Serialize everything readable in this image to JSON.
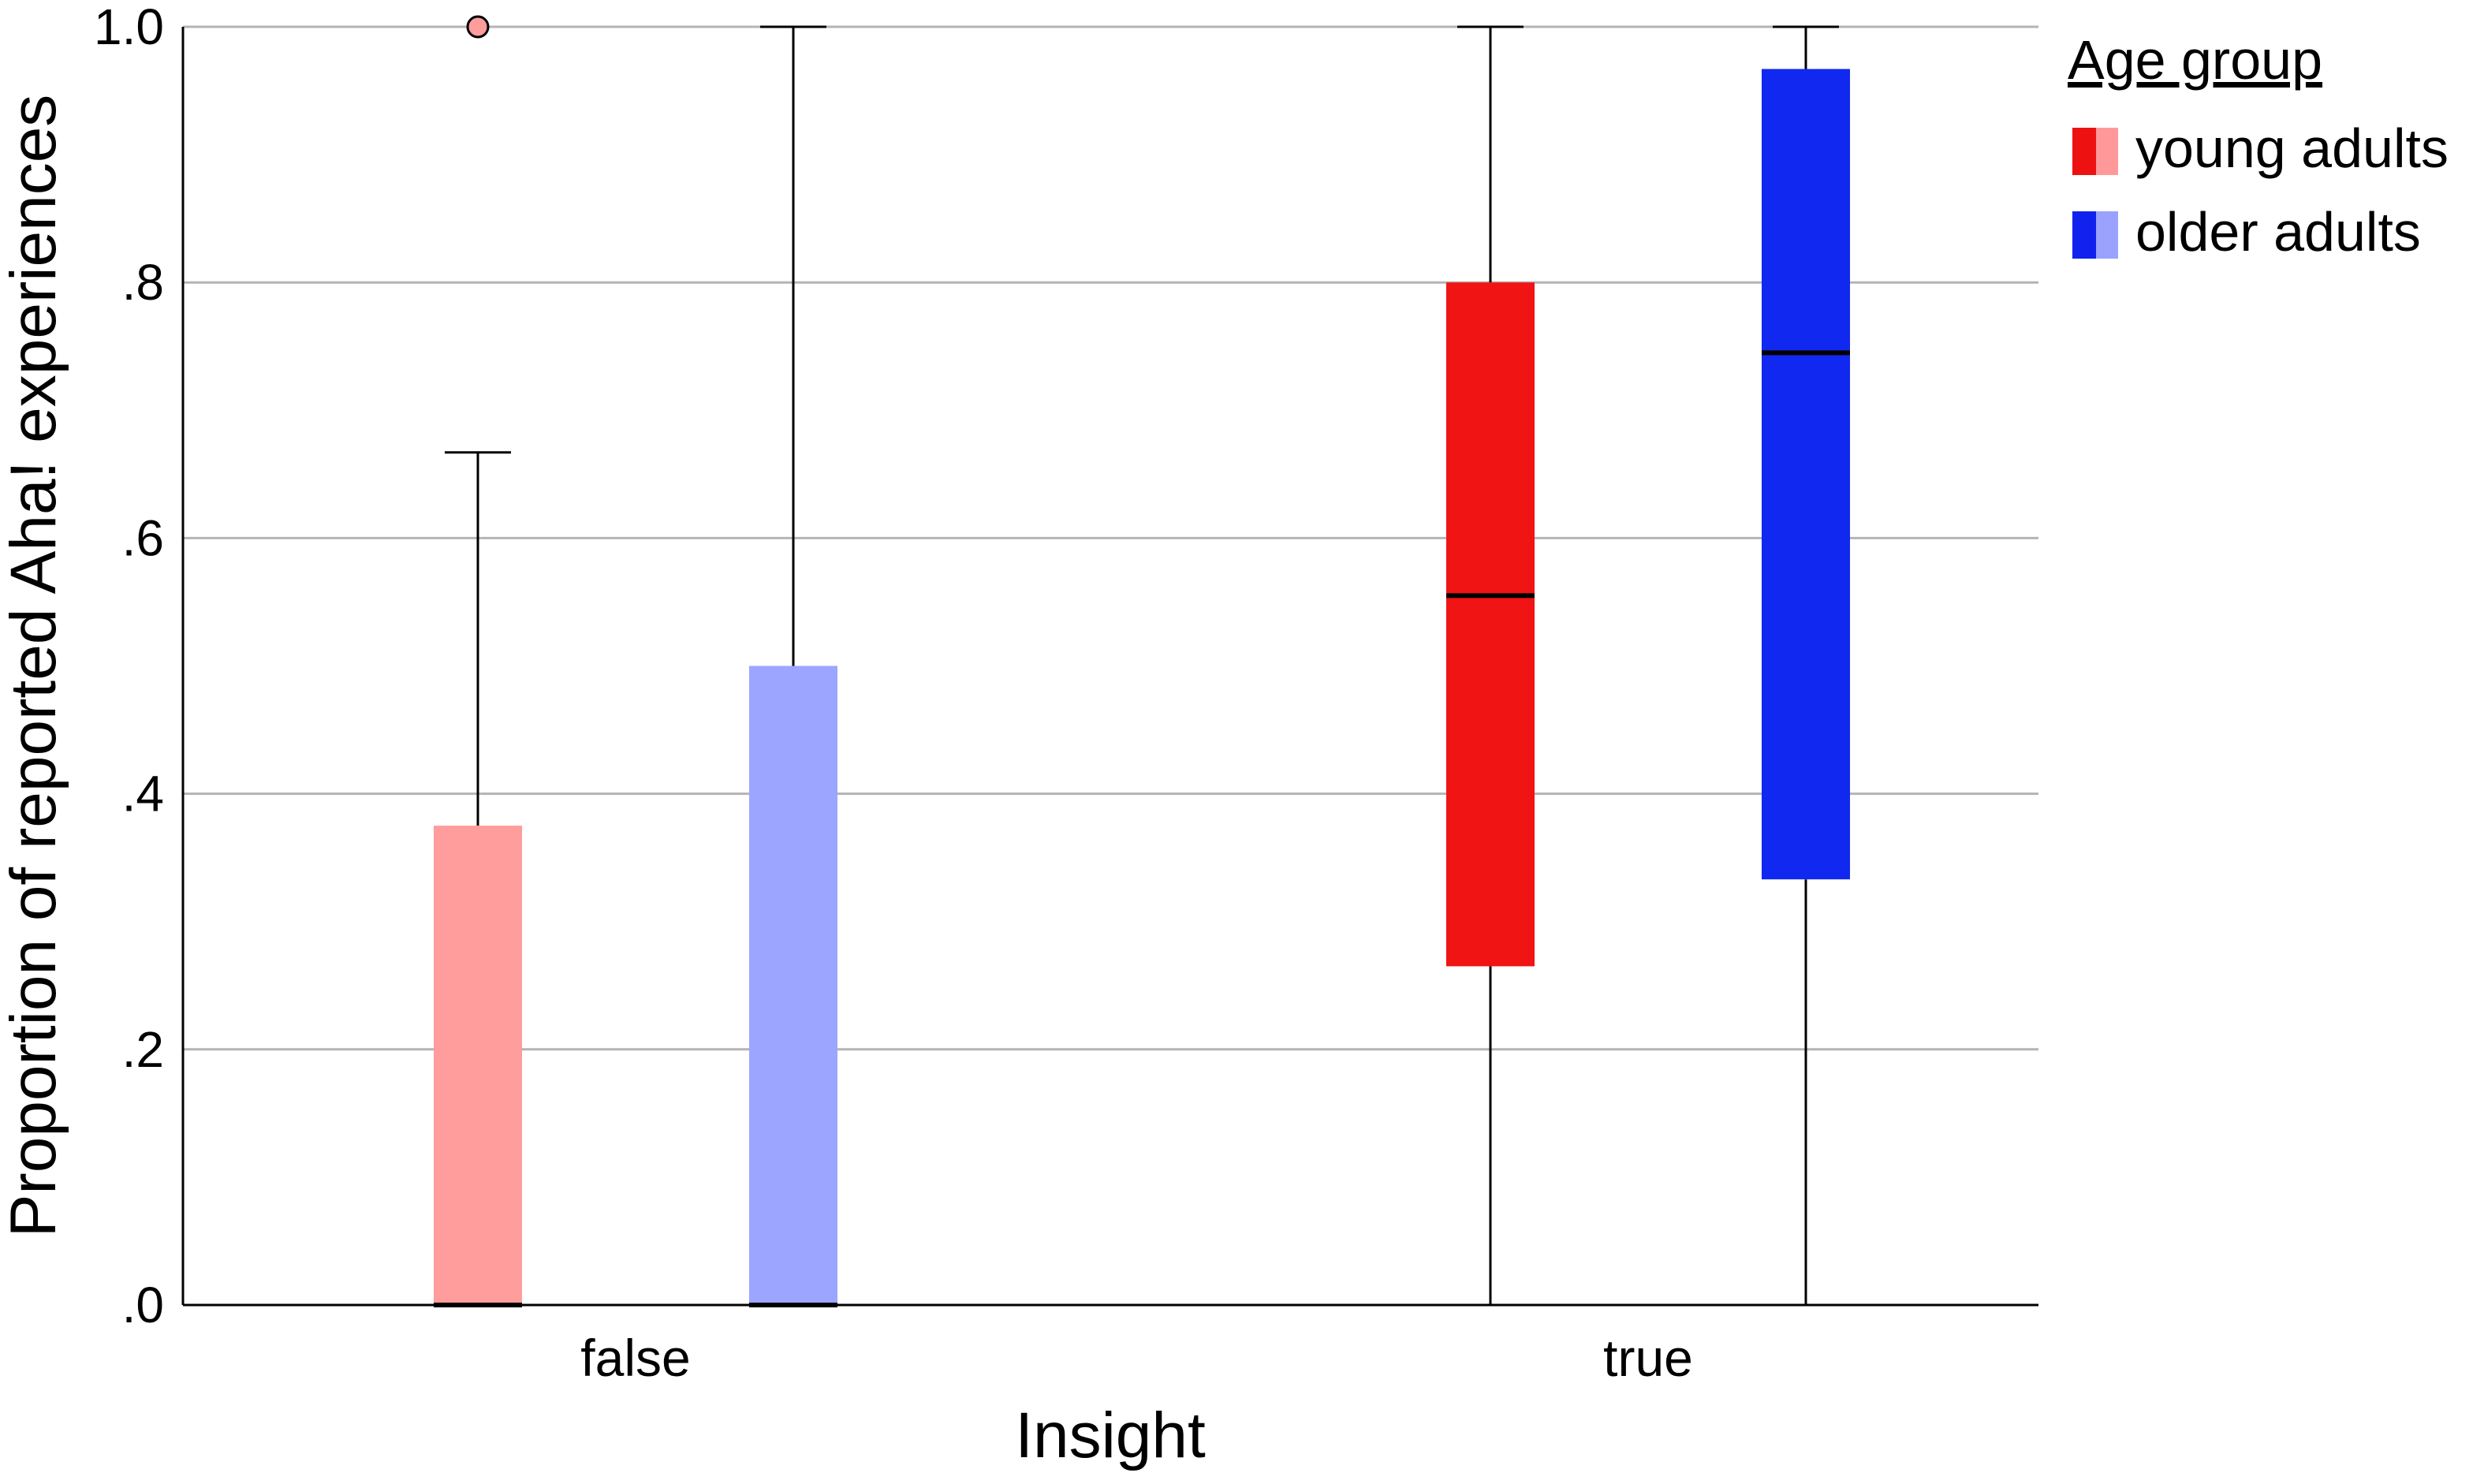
{
  "chart_data": {
    "type": "boxplot",
    "xlabel": "Insight",
    "ylabel": "Proportion of reported Aha! experiences",
    "ylim": [
      0,
      1.0
    ],
    "y_ticks": [
      {
        "value": 0.0,
        "label": ".0"
      },
      {
        "value": 0.2,
        "label": ".2"
      },
      {
        "value": 0.4,
        "label": ".4"
      },
      {
        "value": 0.6,
        "label": ".6"
      },
      {
        "value": 0.8,
        "label": ".8"
      },
      {
        "value": 1.0,
        "label": "1.0"
      }
    ],
    "grid": true,
    "categories": [
      "false",
      "true"
    ],
    "legend": {
      "title": "Age group",
      "position": "top-right",
      "entries": [
        {
          "label": "young adults",
          "colors": [
            "#ee1111",
            "#ff9999"
          ]
        },
        {
          "label": "older adults",
          "colors": [
            "#1122ee",
            "#9aa2fe"
          ]
        }
      ]
    },
    "boxes": [
      {
        "category": "false",
        "group": "young adults",
        "color": "#ff9c9c",
        "whisker_low": 0.0,
        "q1": 0.0,
        "median": 0.0,
        "q3": 0.375,
        "whisker_high": 0.667,
        "outliers": [
          1.0
        ]
      },
      {
        "category": "false",
        "group": "older adults",
        "color": "#9ca5ff",
        "whisker_low": 0.0,
        "q1": 0.0,
        "median": 0.0,
        "q3": 0.5,
        "whisker_high": 1.0,
        "outliers": []
      },
      {
        "category": "true",
        "group": "young adults",
        "color": "#f01414",
        "whisker_low": 0.0,
        "q1": 0.265,
        "median": 0.555,
        "q3": 0.8,
        "whisker_high": 1.0,
        "outliers": []
      },
      {
        "category": "true",
        "group": "older adults",
        "color": "#1128f0",
        "whisker_low": 0.0,
        "q1": 0.333,
        "median": 0.745,
        "q3": 0.967,
        "whisker_high": 1.0,
        "outliers": []
      }
    ]
  }
}
